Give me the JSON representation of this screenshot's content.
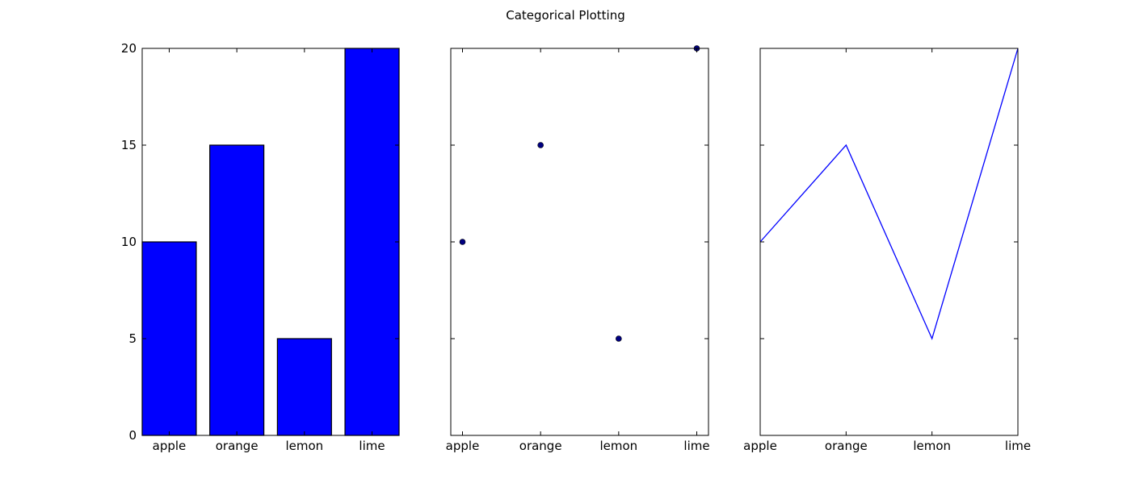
{
  "figure": {
    "title": "Categorical Plotting"
  },
  "colors": {
    "primary": "#0000ff",
    "marker": "#000080",
    "axis": "#000000"
  },
  "chart_data": [
    {
      "type": "bar",
      "categories": [
        "apple",
        "orange",
        "lemon",
        "lime"
      ],
      "values": [
        10,
        15,
        5,
        20
      ],
      "ylim": [
        0,
        20
      ],
      "yticks": [
        0,
        5,
        10,
        15,
        20
      ],
      "grid": false
    },
    {
      "type": "scatter",
      "categories": [
        "apple",
        "orange",
        "lemon",
        "lime"
      ],
      "values": [
        10,
        15,
        5,
        20
      ],
      "ylim": [
        0,
        20
      ],
      "yticks": [
        0,
        5,
        10,
        15,
        20
      ],
      "grid": false
    },
    {
      "type": "line",
      "categories": [
        "apple",
        "orange",
        "lemon",
        "lime"
      ],
      "values": [
        10,
        15,
        5,
        20
      ],
      "ylim": [
        0,
        20
      ],
      "yticks": [
        0,
        5,
        10,
        15,
        20
      ],
      "grid": false
    }
  ]
}
